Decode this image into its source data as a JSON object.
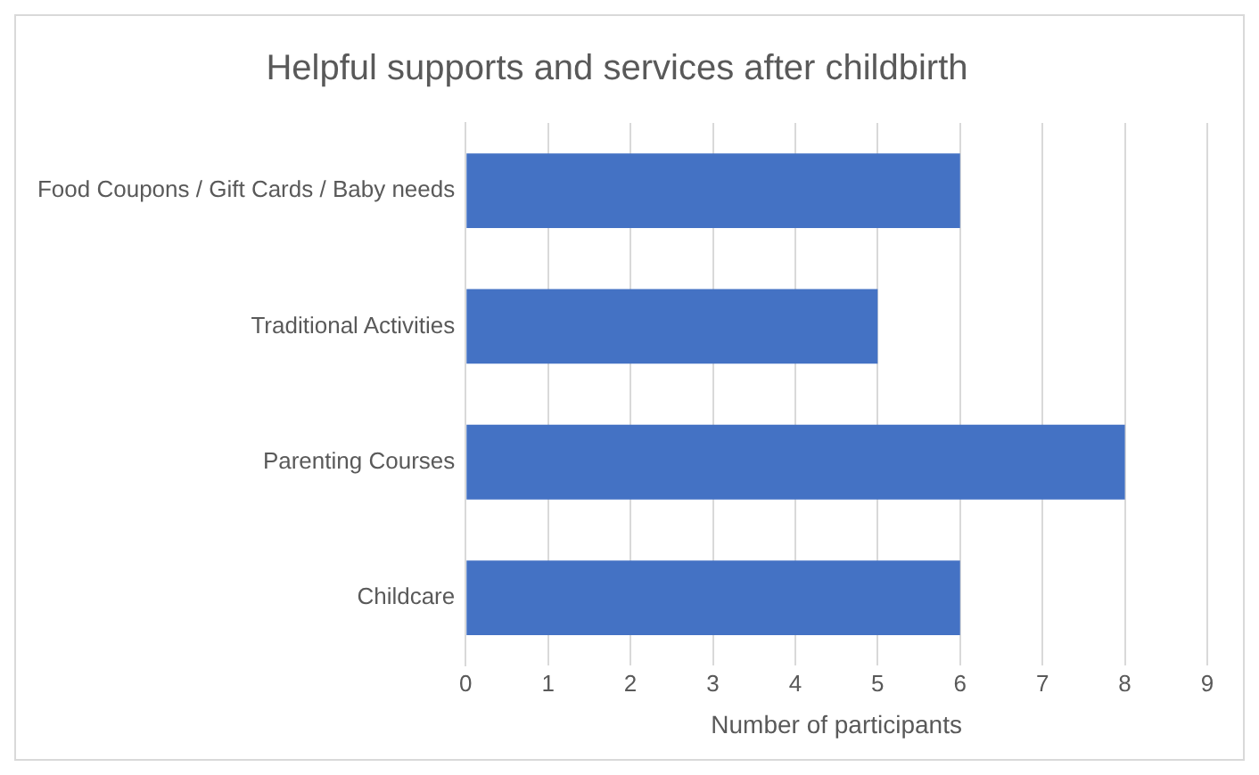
{
  "chart_data": {
    "type": "bar",
    "orientation": "horizontal",
    "title": "Helpful supports and services after childbirth",
    "xlabel": "Number of participants",
    "categories": [
      "Food Coupons / Gift Cards / Baby needs",
      "Traditional Activities",
      "Parenting Courses",
      "Childcare"
    ],
    "values": [
      6,
      5,
      8,
      6
    ],
    "color": "#4472c4",
    "xlim": [
      0,
      9
    ],
    "xticks": [
      0,
      1,
      2,
      3,
      4,
      5,
      6,
      7,
      8,
      9
    ],
    "grid": "x",
    "legend": false
  }
}
